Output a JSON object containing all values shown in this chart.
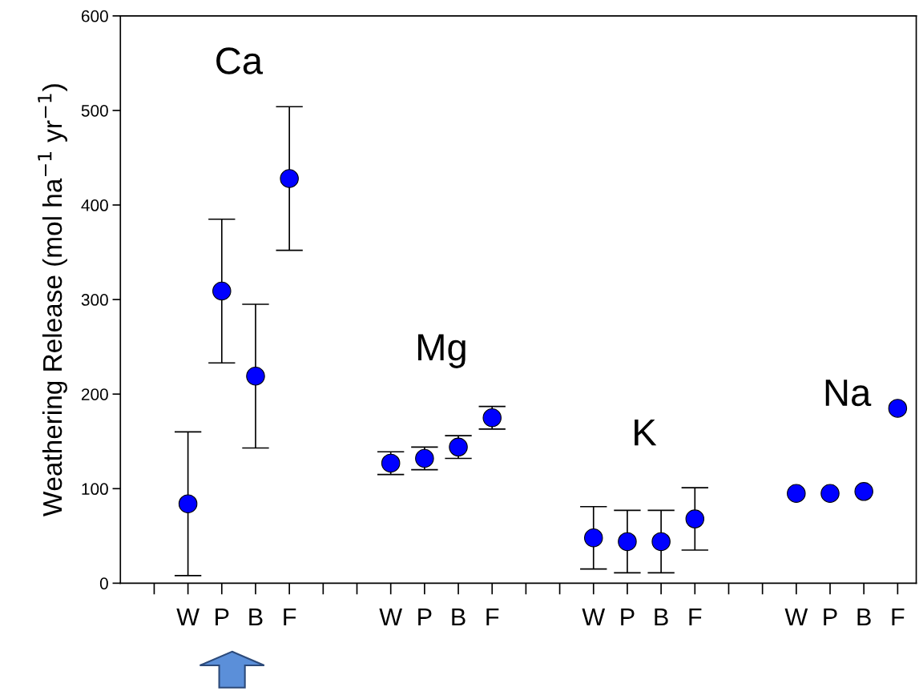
{
  "chart_data": {
    "type": "scatter",
    "ylabel": "Weathering Release (mol ha$^{−1}$ yr$^{−1}$)",
    "categories": [
      null,
      "W",
      "P",
      "B",
      "F",
      null,
      null,
      "W",
      "P",
      "B",
      "F",
      null,
      null,
      "W",
      "P",
      "B",
      "F",
      null,
      null,
      "W",
      "P",
      "B",
      "F"
    ],
    "series": [
      {
        "color": "#0000ff",
        "values": [
          null,
          84,
          309,
          219,
          428,
          null,
          null,
          127,
          132,
          144,
          175,
          null,
          null,
          48,
          44,
          44,
          68,
          null,
          null,
          95,
          95,
          97,
          185
        ],
        "errors": [
          null,
          76,
          76,
          76,
          76,
          null,
          null,
          12,
          12,
          12,
          12,
          null,
          null,
          33,
          33,
          33,
          33,
          null,
          null,
          null,
          null,
          null,
          null
        ]
      }
    ],
    "ylim": [
      0,
      600
    ],
    "yticks": [
      0,
      100,
      200,
      300,
      400,
      500,
      600
    ],
    "annotations": [
      "Ca",
      "Mg",
      "K",
      "Na"
    ],
    "marker": "circle",
    "grid": false,
    "legend": false
  }
}
